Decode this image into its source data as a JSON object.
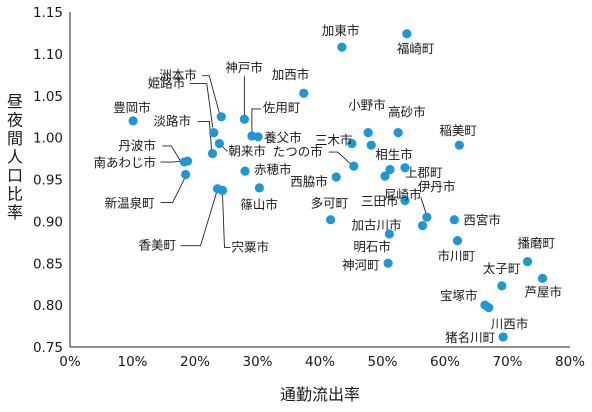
{
  "chart_data": {
    "type": "scatter",
    "title": "",
    "xlabel": "通勤流出率",
    "ylabel": "昼夜間人口比率",
    "xlim": [
      0,
      80
    ],
    "ylim": [
      0.75,
      1.15
    ],
    "grid": false,
    "x_ticks": [
      "0%",
      "10%",
      "20%",
      "30%",
      "40%",
      "50%",
      "60%",
      "70%",
      "80%"
    ],
    "y_ticks": [
      "0.75",
      "0.80",
      "0.85",
      "0.90",
      "0.95",
      "1.00",
      "1.05",
      "1.10",
      "1.15"
    ],
    "points": [
      {
        "label": "加東市",
        "x": 43.5,
        "y": 1.108
      },
      {
        "label": "福崎町",
        "x": 53.9,
        "y": 1.124
      },
      {
        "label": "洲本市",
        "x": 24.2,
        "y": 1.025
      },
      {
        "label": "神戸市",
        "x": 27.9,
        "y": 1.022
      },
      {
        "label": "加西市",
        "x": 37.4,
        "y": 1.053
      },
      {
        "label": "姫路市",
        "x": 23.0,
        "y": 1.006
      },
      {
        "label": "佐用町",
        "x": 29.1,
        "y": 1.002
      },
      {
        "label": "豊岡市",
        "x": 10.1,
        "y": 1.02
      },
      {
        "label": "淡路市",
        "x": 22.8,
        "y": 0.981
      },
      {
        "label": "養父市",
        "x": 30.1,
        "y": 1.001
      },
      {
        "label": "小野市",
        "x": 47.7,
        "y": 1.006
      },
      {
        "label": "高砂市",
        "x": 52.5,
        "y": 1.006
      },
      {
        "label": "稲美町",
        "x": 62.3,
        "y": 0.991
      },
      {
        "label": "朝来市",
        "x": 23.9,
        "y": 0.993
      },
      {
        "label": "三木市",
        "x": 45.1,
        "y": 0.993
      },
      {
        "label": "相生市",
        "x": 48.2,
        "y": 0.991
      },
      {
        "label": "丹波市",
        "x": 18.3,
        "y": 0.971
      },
      {
        "label": "南あわじ市",
        "x": 18.8,
        "y": 0.972
      },
      {
        "label": "たつの市",
        "x": 45.4,
        "y": 0.966
      },
      {
        "label": "上郡町",
        "x": 53.6,
        "y": 0.964
      },
      {
        "label": "上郡町2",
        "x": 51.2,
        "y": 0.962
      },
      {
        "label": "赤穂市",
        "x": 28.0,
        "y": 0.96
      },
      {
        "label": "新温泉町",
        "x": 18.5,
        "y": 0.956
      },
      {
        "label": "西脇市",
        "x": 42.6,
        "y": 0.953
      },
      {
        "label": "尼崎市",
        "x": 50.4,
        "y": 0.954
      },
      {
        "label": "篠山市",
        "x": 30.3,
        "y": 0.94
      },
      {
        "label": "香美町",
        "x": 23.6,
        "y": 0.939
      },
      {
        "label": "宍粟市",
        "x": 24.4,
        "y": 0.937
      },
      {
        "label": "三田市",
        "x": 53.6,
        "y": 0.925
      },
      {
        "label": "多可町",
        "x": 41.7,
        "y": 0.902
      },
      {
        "label": "伊丹市",
        "x": 57.1,
        "y": 0.905
      },
      {
        "label": "加古川市",
        "x": 56.4,
        "y": 0.895
      },
      {
        "label": "西宮市",
        "x": 61.5,
        "y": 0.902
      },
      {
        "label": "明石市",
        "x": 51.1,
        "y": 0.885
      },
      {
        "label": "市川町",
        "x": 62.0,
        "y": 0.877
      },
      {
        "label": "神河町",
        "x": 50.9,
        "y": 0.85
      },
      {
        "label": "播磨町",
        "x": 73.2,
        "y": 0.852
      },
      {
        "label": "芦屋市",
        "x": 75.6,
        "y": 0.832
      },
      {
        "label": "太子町",
        "x": 69.1,
        "y": 0.823
      },
      {
        "label": "宝塚市",
        "x": 66.4,
        "y": 0.8
      },
      {
        "label": "川西市",
        "x": 67.0,
        "y": 0.797
      },
      {
        "label": "猪名川町",
        "x": 69.3,
        "y": 0.762
      }
    ],
    "labels": [
      {
        "text": "加東市",
        "point": 0
      },
      {
        "text": "福崎町",
        "point": 1
      },
      {
        "text": "洲本市",
        "point": 2
      },
      {
        "text": "神戸市",
        "point": 3
      },
      {
        "text": "加西市",
        "point": 4
      },
      {
        "text": "姫路市",
        "point": 5
      },
      {
        "text": "佐用町",
        "point": 6
      },
      {
        "text": "豊岡市",
        "point": 7
      },
      {
        "text": "淡路市",
        "point": 8
      },
      {
        "text": "養父市",
        "point": 9
      },
      {
        "text": "小野市",
        "point": 10
      },
      {
        "text": "高砂市",
        "point": 11
      },
      {
        "text": "稲美町",
        "point": 12
      },
      {
        "text": "朝来市",
        "point": 13
      },
      {
        "text": "三木市",
        "point": 14
      },
      {
        "text": "相生市",
        "point": 15
      },
      {
        "text": "丹波市",
        "point": 16
      },
      {
        "text": "南あわじ市",
        "point": 17
      },
      {
        "text": "たつの市",
        "point": 18
      },
      {
        "text": "上郡町",
        "point": 19
      },
      {
        "text": "赤穂市",
        "point": 21
      },
      {
        "text": "新温泉町",
        "point": 22
      },
      {
        "text": "西脇市",
        "point": 23
      },
      {
        "text": "尼崎市",
        "point": 24
      },
      {
        "text": "篠山市",
        "point": 25
      },
      {
        "text": "香美町",
        "point": 26
      },
      {
        "text": "宍粟市",
        "point": 27
      },
      {
        "text": "三田市",
        "point": 28
      },
      {
        "text": "多可町",
        "point": 29
      },
      {
        "text": "伊丹市",
        "point": 30
      },
      {
        "text": "加古川市",
        "point": 31
      },
      {
        "text": "西宮市",
        "point": 32
      },
      {
        "text": "明石市",
        "point": 33
      },
      {
        "text": "市川町",
        "point": 34
      },
      {
        "text": "神河町",
        "point": 35
      },
      {
        "text": "播磨町",
        "point": 36
      },
      {
        "text": "芦屋市",
        "point": 37
      },
      {
        "text": "太子町",
        "point": 38
      },
      {
        "text": "宝塚市",
        "point": 39
      },
      {
        "text": "川西市",
        "point": 40
      },
      {
        "text": "猪名川町",
        "point": 41
      }
    ],
    "colors": {
      "marker": "#1f97d4",
      "text": "#1a1a1a"
    }
  }
}
